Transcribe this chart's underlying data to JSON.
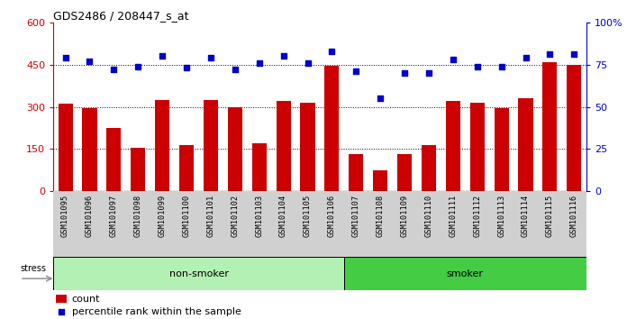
{
  "title": "GDS2486 / 208447_s_at",
  "categories": [
    "GSM101095",
    "GSM101096",
    "GSM101097",
    "GSM101098",
    "GSM101099",
    "GSM101100",
    "GSM101101",
    "GSM101102",
    "GSM101103",
    "GSM101104",
    "GSM101105",
    "GSM101106",
    "GSM101107",
    "GSM101108",
    "GSM101109",
    "GSM101110",
    "GSM101111",
    "GSM101112",
    "GSM101113",
    "GSM101114",
    "GSM101115",
    "GSM101116"
  ],
  "bar_values": [
    310,
    295,
    225,
    155,
    325,
    163,
    325,
    300,
    170,
    320,
    315,
    445,
    133,
    75,
    133,
    163,
    322,
    315,
    295,
    330,
    460,
    450
  ],
  "percentile_values": [
    79,
    77,
    72,
    74,
    80,
    73,
    79,
    72,
    76,
    80,
    76,
    83,
    71,
    55,
    70,
    70,
    78,
    74,
    74,
    79,
    81,
    81
  ],
  "bar_color": "#cc0000",
  "percentile_color": "#0000cc",
  "nonsmoker_color": "#b3f0b3",
  "smoker_color": "#44cc44",
  "xtick_bg_color": "#d0d0d0",
  "nonsmoker_count": 12,
  "smoker_count": 10,
  "ylim_left": [
    0,
    600
  ],
  "ylim_right": [
    0,
    100
  ],
  "yticks_left": [
    0,
    150,
    300,
    450,
    600
  ],
  "yticks_right": [
    0,
    25,
    50,
    75,
    100
  ],
  "ytick_labels_left": [
    "0",
    "150",
    "300",
    "450",
    "600"
  ],
  "ytick_labels_right": [
    "0",
    "25",
    "50",
    "75",
    "100%"
  ],
  "grid_values": [
    150,
    300,
    450
  ],
  "stress_label": "stress",
  "nonsmoker_label": "non-smoker",
  "smoker_label": "smoker",
  "legend_count": "count",
  "legend_percentile": "percentile rank within the sample"
}
